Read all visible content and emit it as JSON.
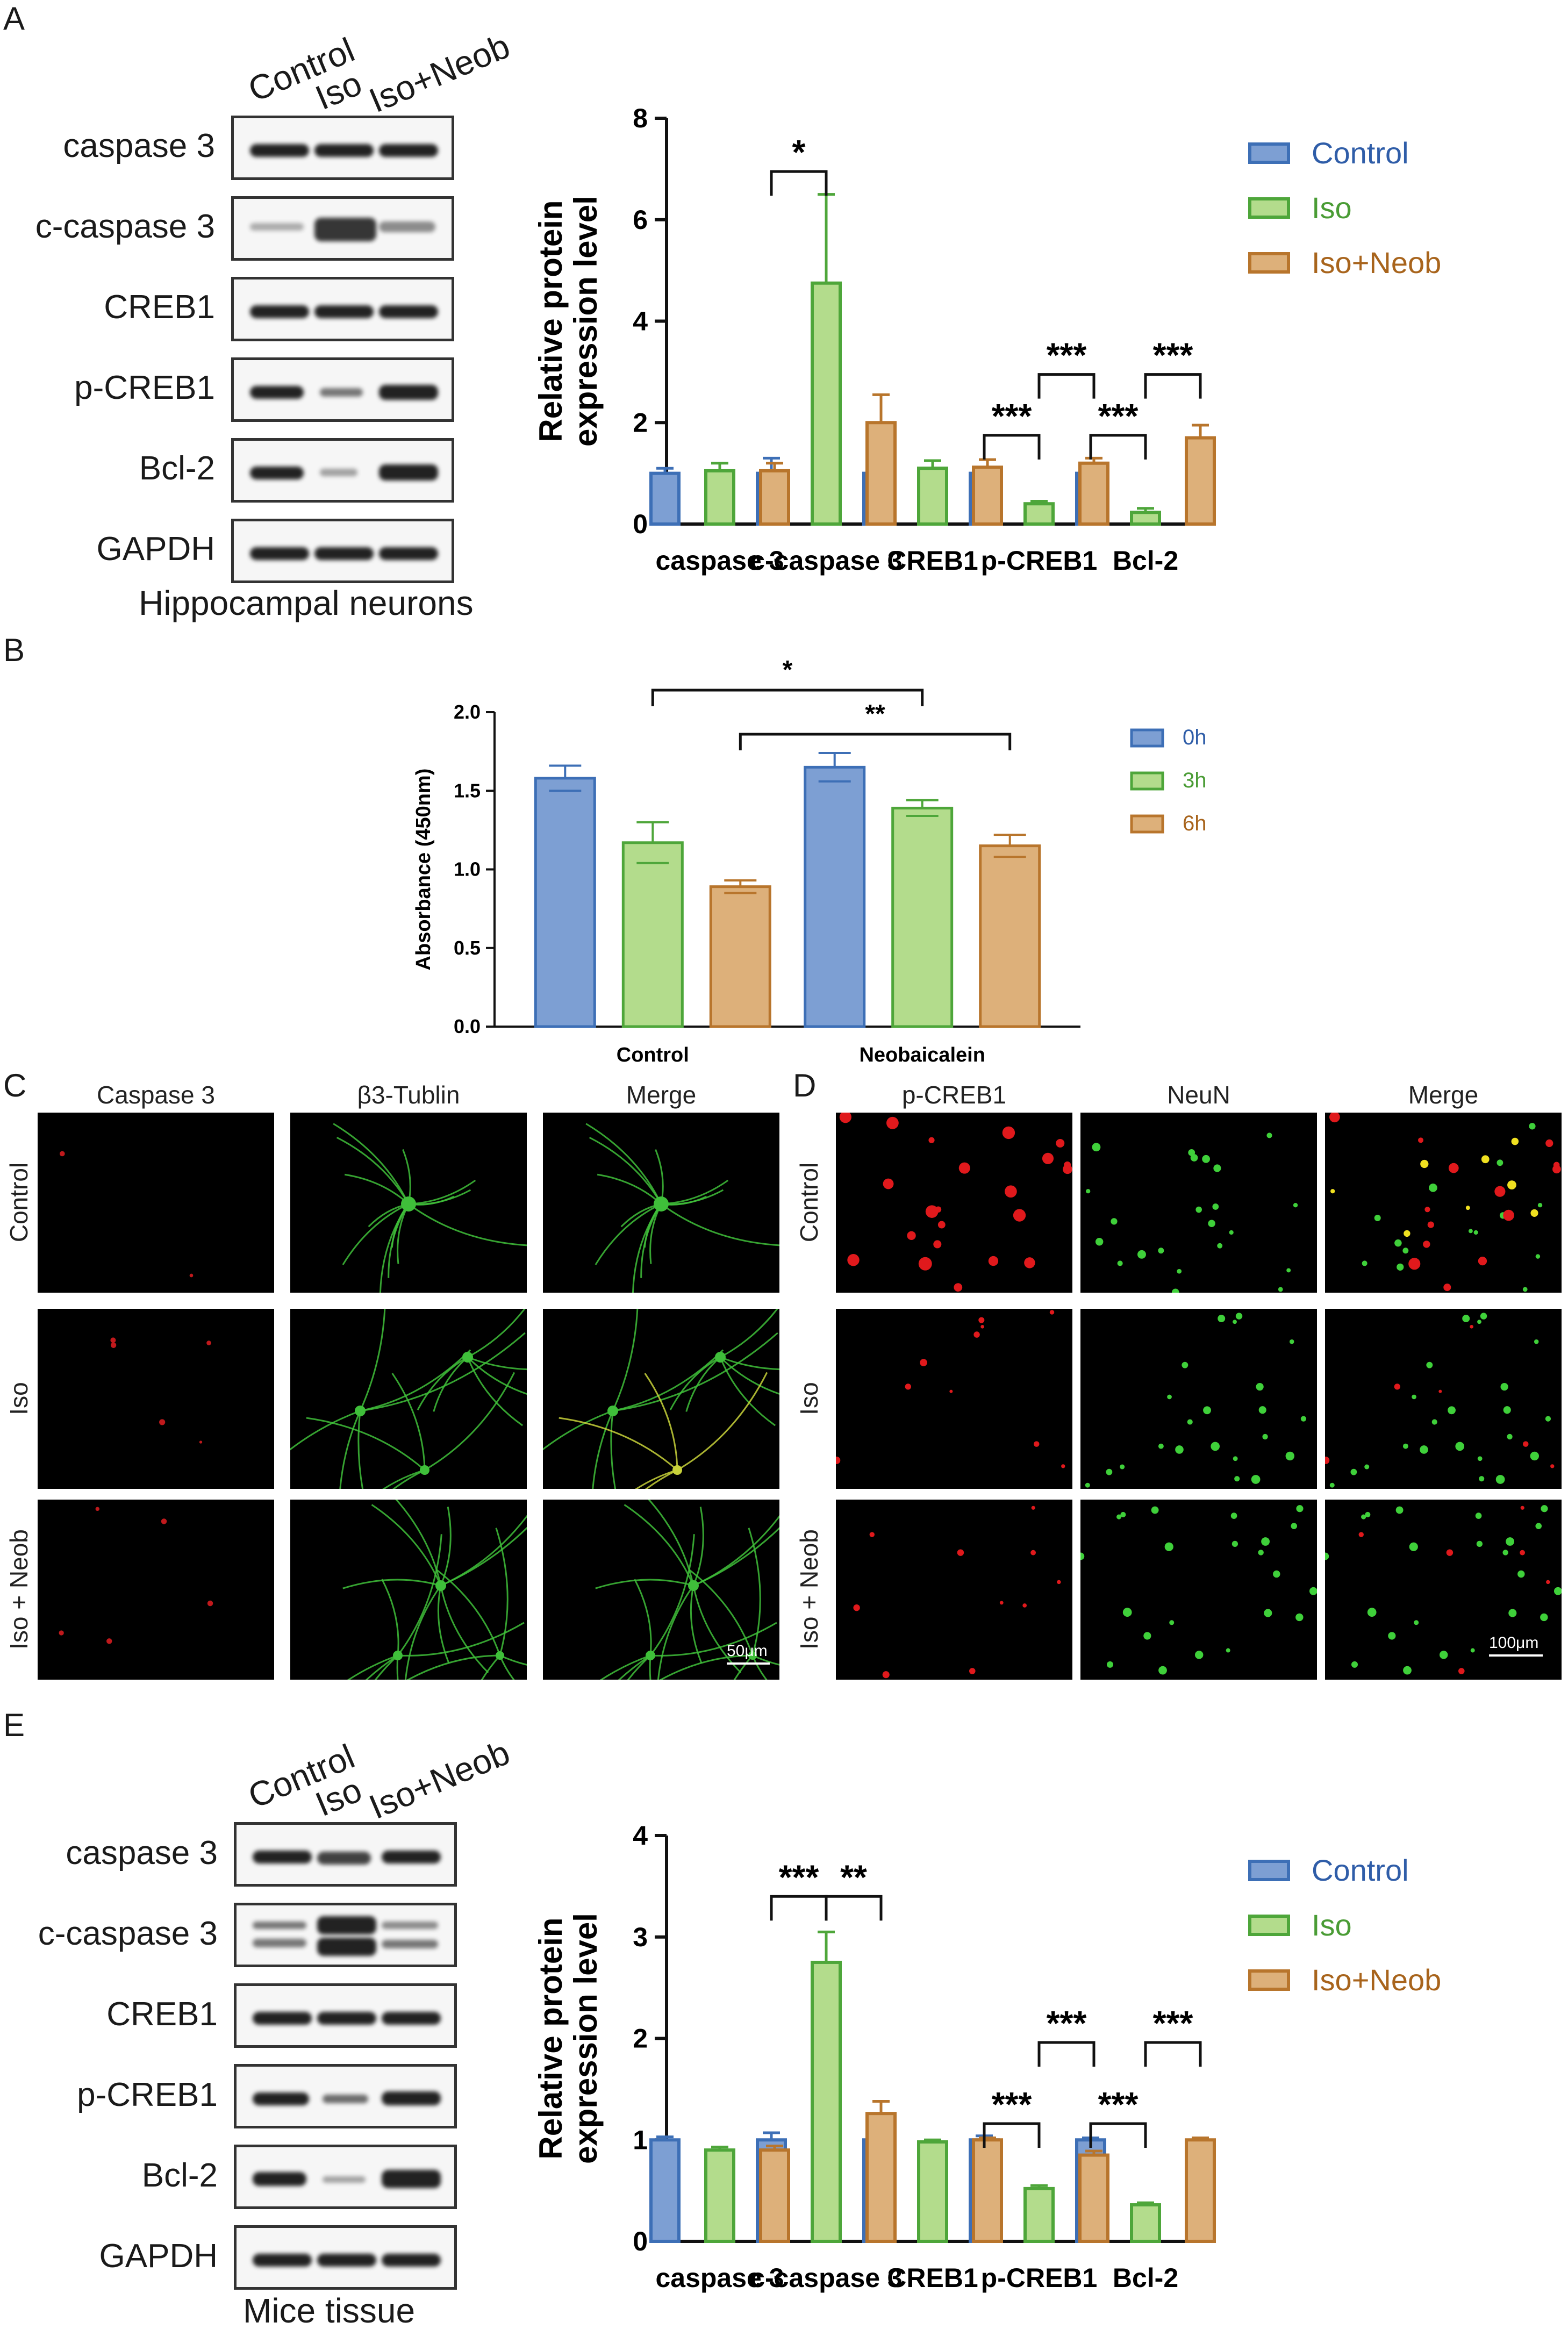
{
  "panel_letters": {
    "a": "A",
    "b": "B",
    "c": "C",
    "d": "D",
    "e": "E"
  },
  "blot_a": {
    "lane_labels": [
      "Control",
      "Iso",
      "Iso+Neob"
    ],
    "rows": [
      "caspase 3",
      "c-caspase 3",
      "CREB1",
      "p-CREB1",
      "Bcl-2",
      "GAPDH"
    ],
    "caption": "Hippocampal neurons"
  },
  "blot_e": {
    "lane_labels": [
      "Control",
      "Iso",
      "Iso+Neob"
    ],
    "rows": [
      "caspase 3",
      "c-caspase 3",
      "CREB1",
      "p-CREB1",
      "Bcl-2",
      "GAPDH"
    ],
    "caption": "Mice tissue"
  },
  "panel_c": {
    "columns": [
      "Caspase 3",
      "β3-Tublin",
      "Merge"
    ],
    "rows": [
      "Control",
      "Iso",
      "Iso + Neob"
    ],
    "scale_label": "50μm"
  },
  "panel_d": {
    "columns": [
      "p-CREB1",
      "NeuN",
      "Merge"
    ],
    "rows": [
      "Control",
      "Iso",
      "Iso + Neob"
    ],
    "scale_label": "100μm"
  },
  "colors": {
    "control": "#3d6fb6",
    "control_fill": "#7d9fd3",
    "iso": "#4ea63a",
    "iso_fill": "#b3dc8c",
    "neob": "#b8752c",
    "neob_fill": "#ddb07a",
    "text_control": "#2f5da8",
    "text_iso": "#4a9c35",
    "text_neob": "#a8641c"
  },
  "chart_data": [
    {
      "id": "A",
      "type": "bar",
      "categories": [
        "caspase 3",
        "c-caspase 3",
        "CREB1",
        "p-CREB1",
        "Bcl-2"
      ],
      "series": [
        {
          "name": "Control",
          "values": [
            1.0,
            1.0,
            1.0,
            1.0,
            1.0
          ],
          "errors": [
            0.1,
            0.3,
            0.12,
            0.04,
            0.12
          ]
        },
        {
          "name": "Iso",
          "values": [
            1.05,
            4.75,
            1.1,
            0.4,
            0.23
          ],
          "errors": [
            0.15,
            1.75,
            0.15,
            0.05,
            0.08
          ]
        },
        {
          "name": "Iso+Neob",
          "values": [
            1.05,
            2.0,
            1.12,
            1.2,
            1.7
          ],
          "errors": [
            0.15,
            0.55,
            0.15,
            0.1,
            0.25
          ]
        }
      ],
      "ylabel": "Relative protein expression level",
      "ylim": [
        0,
        8
      ],
      "yticks": [
        0,
        2,
        4,
        6,
        8
      ],
      "legend": "top-right",
      "significance": [
        {
          "category": 1,
          "from": 0,
          "to": 1,
          "label": "*",
          "level": 6.95
        },
        {
          "category": 3,
          "from": 0,
          "to": 1,
          "label": "***",
          "level": 1.75
        },
        {
          "category": 3,
          "from": 1,
          "to": 2,
          "label": "***",
          "level": 2.95
        },
        {
          "category": 4,
          "from": 0,
          "to": 1,
          "label": "***",
          "level": 1.75
        },
        {
          "category": 4,
          "from": 1,
          "to": 2,
          "label": "***",
          "level": 2.95
        }
      ]
    },
    {
      "id": "B",
      "type": "bar",
      "categories": [
        "Control",
        "Neobaicalein"
      ],
      "series": [
        {
          "name": "0h",
          "values": [
            1.58,
            1.65
          ],
          "errors": [
            0.08,
            0.09
          ]
        },
        {
          "name": "3h",
          "values": [
            1.17,
            1.39
          ],
          "errors": [
            0.13,
            0.05
          ]
        },
        {
          "name": "6h",
          "values": [
            0.89,
            1.15
          ],
          "errors": [
            0.04,
            0.07
          ]
        }
      ],
      "ylabel": "Absorbance (450nm)",
      "ylim": [
        0,
        2.0
      ],
      "yticks": [
        0.0,
        0.5,
        1.0,
        1.5,
        2.0
      ],
      "legend": "top-right",
      "significance": [
        {
          "from_cat": 0,
          "from_series": 1,
          "to_cat": 1,
          "to_series": 1,
          "label": "*",
          "level": 2.14
        },
        {
          "from_cat": 0,
          "from_series": 2,
          "to_cat": 1,
          "to_series": 2,
          "label": "**",
          "level": 1.86
        }
      ]
    },
    {
      "id": "E",
      "type": "bar",
      "categories": [
        "caspase 3",
        "c-caspase 3",
        "CREB1",
        "p-CREB1",
        "Bcl-2"
      ],
      "series": [
        {
          "name": "Control",
          "values": [
            1.0,
            1.0,
            1.0,
            1.0,
            1.0
          ],
          "errors": [
            0.03,
            0.07,
            0.03,
            0.04,
            0.02
          ]
        },
        {
          "name": "Iso",
          "values": [
            0.9,
            2.75,
            0.98,
            0.52,
            0.36
          ],
          "errors": [
            0.03,
            0.3,
            0.02,
            0.03,
            0.02
          ]
        },
        {
          "name": "Iso+Neob",
          "values": [
            0.9,
            1.26,
            1.0,
            0.85,
            1.0
          ],
          "errors": [
            0.04,
            0.12,
            0.02,
            0.04,
            0.02
          ]
        }
      ],
      "ylabel": "Relative protein expression level",
      "ylim": [
        0,
        4
      ],
      "yticks": [
        0,
        1,
        2,
        3,
        4
      ],
      "legend": "top-right",
      "significance": [
        {
          "category": 1,
          "from": 0,
          "to": 1,
          "label": "***",
          "level": 3.4
        },
        {
          "category": 1,
          "from": 1,
          "to": 2,
          "label": "**",
          "level": 3.4
        },
        {
          "category": 3,
          "from": 0,
          "to": 1,
          "label": "***",
          "level": 1.16
        },
        {
          "category": 3,
          "from": 1,
          "to": 2,
          "label": "***",
          "level": 1.96
        },
        {
          "category": 4,
          "from": 0,
          "to": 1,
          "label": "***",
          "level": 1.16
        },
        {
          "category": 4,
          "from": 1,
          "to": 2,
          "label": "***",
          "level": 1.96
        }
      ]
    }
  ]
}
